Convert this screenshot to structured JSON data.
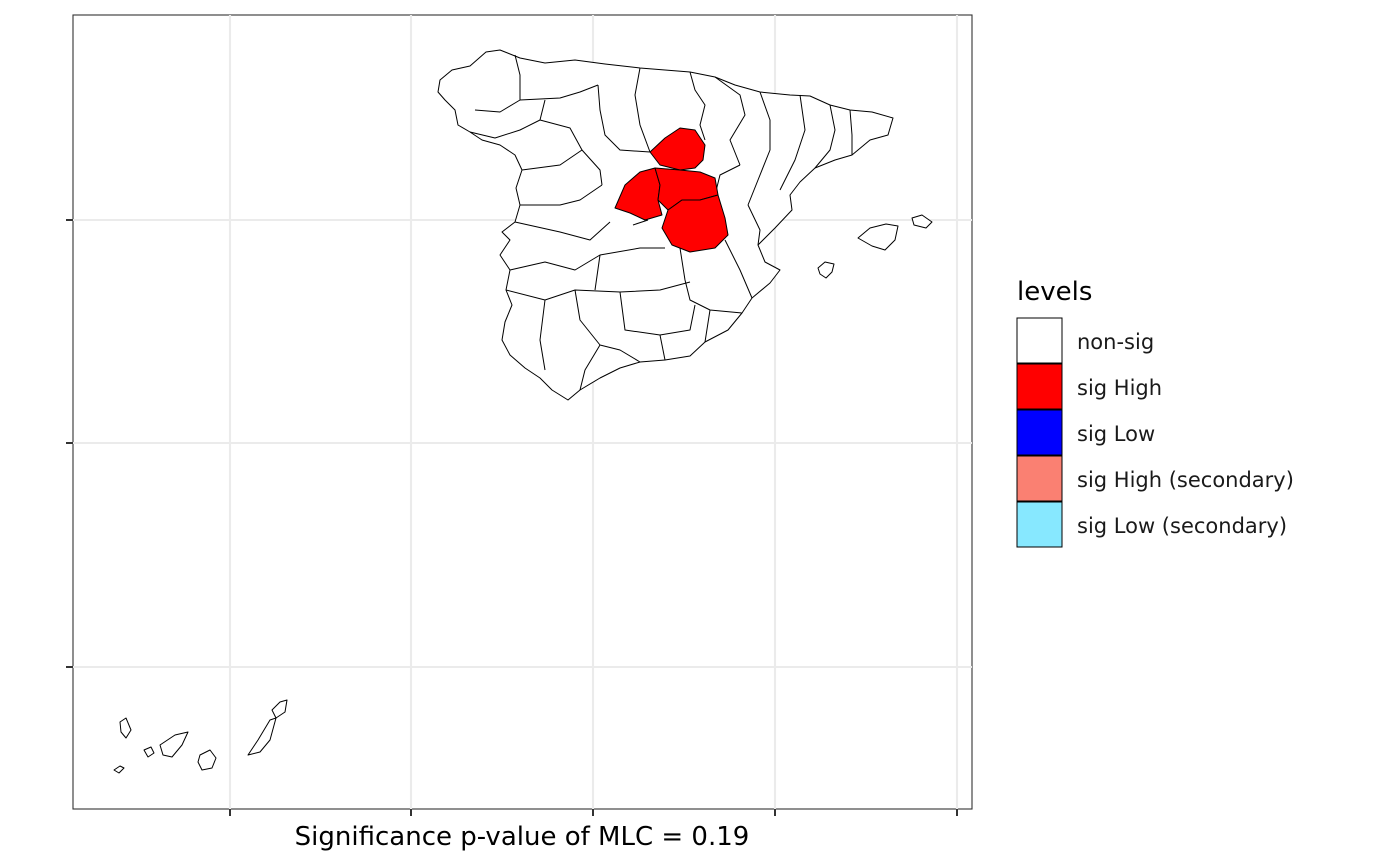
{
  "map": {
    "xlabel": "Significance p-value of MLC = 0.19",
    "fill_default": "#ffffff",
    "fill_highlight": "#ff0000",
    "border_color": "#000000",
    "highlighted_region_count": 4
  },
  "legend": {
    "title": "levels",
    "items": [
      {
        "label": "non-sig",
        "color": "#ffffff"
      },
      {
        "label": "sig High",
        "color": "#ff0000"
      },
      {
        "label": "sig Low",
        "color": "#0000ff"
      },
      {
        "label": "sig High (secondary)",
        "color": "#fa8072"
      },
      {
        "label": "sig Low (secondary)",
        "color": "#87e8ff"
      }
    ]
  }
}
